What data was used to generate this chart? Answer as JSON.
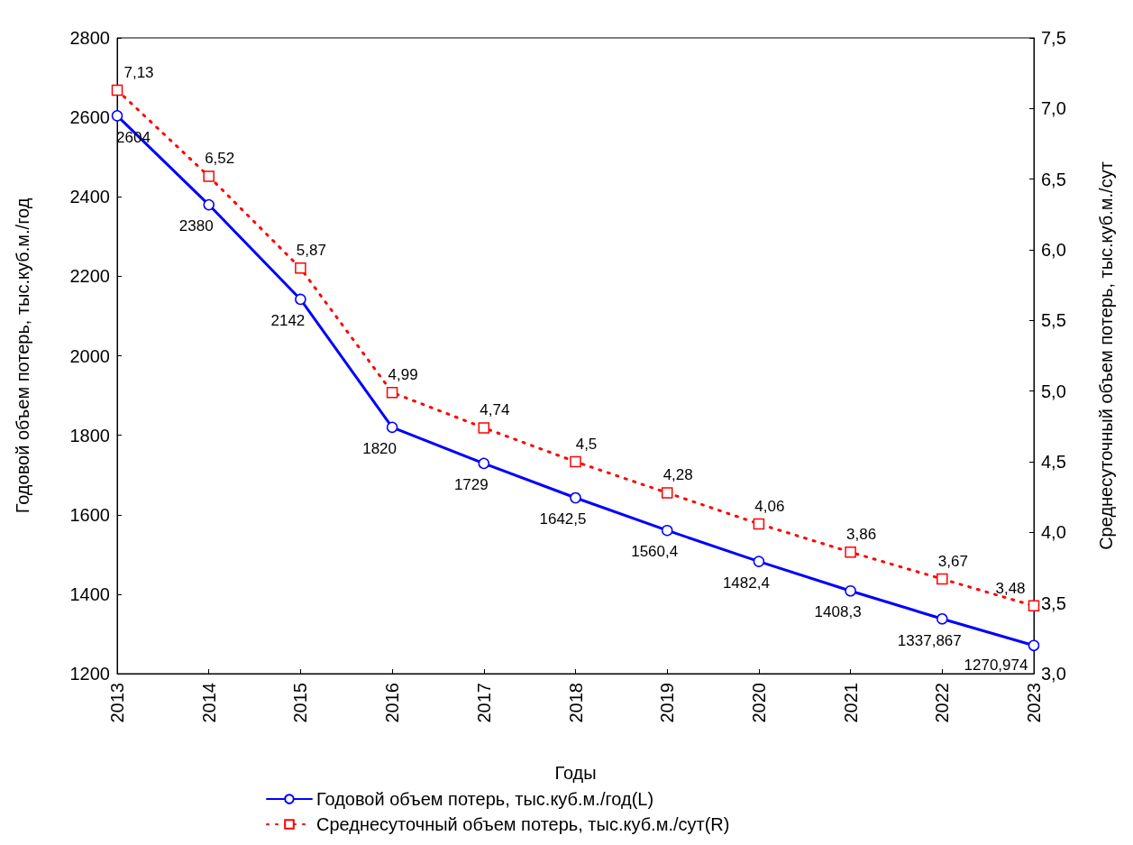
{
  "chart_data": {
    "type": "line",
    "xlabel": "Годы",
    "ylabel": "Годовой объем потерь, тыс.куб.м./год",
    "y2label": "Среднесуточный объем потерь, тыс.куб.м./сут",
    "x": [
      2013,
      2014,
      2015,
      2016,
      2017,
      2018,
      2019,
      2020,
      2021,
      2022,
      2023
    ],
    "xlim": [
      2013,
      2023
    ],
    "xticks": [
      2013,
      2014,
      2015,
      2016,
      2017,
      2018,
      2019,
      2020,
      2021,
      2022,
      2023
    ],
    "ylim": [
      1200,
      2800
    ],
    "yticks": [
      1200,
      1400,
      1600,
      1800,
      2000,
      2200,
      2400,
      2600,
      2800
    ],
    "y2lim": [
      3,
      7.5
    ],
    "y2ticks": [
      {
        "value": 3,
        "label": "3,0"
      },
      {
        "value": 3.5,
        "label": "3,5"
      },
      {
        "value": 4,
        "label": "4,0"
      },
      {
        "value": 4.5,
        "label": "4,5"
      },
      {
        "value": 5,
        "label": "5,0"
      },
      {
        "value": 5.5,
        "label": "5,5"
      },
      {
        "value": 6,
        "label": "6,0"
      },
      {
        "value": 6.5,
        "label": "6,5"
      },
      {
        "value": 7,
        "label": "7,0"
      },
      {
        "value": 7.5,
        "label": "7,5"
      }
    ],
    "grid": false,
    "legend": "bottom",
    "series": [
      {
        "name": "Годовой объем потерь, тыс.куб.м./год(L)",
        "color": "#0000ff",
        "marker": "circle",
        "line_style": "solid",
        "values": [
          2604,
          2380,
          2142,
          1820,
          1729,
          1642.5,
          1560.4,
          1482.4,
          1408.3,
          1337.867,
          1270.974
        ],
        "value_labels": [
          "2604",
          "2380",
          "2142",
          "1820",
          "1729",
          "1642,5",
          "1560,4",
          "1482,4",
          "1408,3",
          "1337,867",
          "1270,974"
        ]
      },
      {
        "name": "Среднесуточный объем потерь, тыс.куб.м./сут(R)",
        "color": "#ff0000",
        "marker": "square",
        "line_style": "dotted",
        "axis": "y2",
        "values": [
          7.13,
          6.52,
          5.87,
          4.99,
          4.74,
          4.5,
          4.28,
          4.06,
          3.86,
          3.67,
          3.48
        ],
        "value_labels": [
          "7,13",
          "6,52",
          "5,87",
          "4,99",
          "4,74",
          "4,5",
          "4,28",
          "4,06",
          "3,86",
          "3,67",
          "3,48"
        ]
      }
    ]
  }
}
